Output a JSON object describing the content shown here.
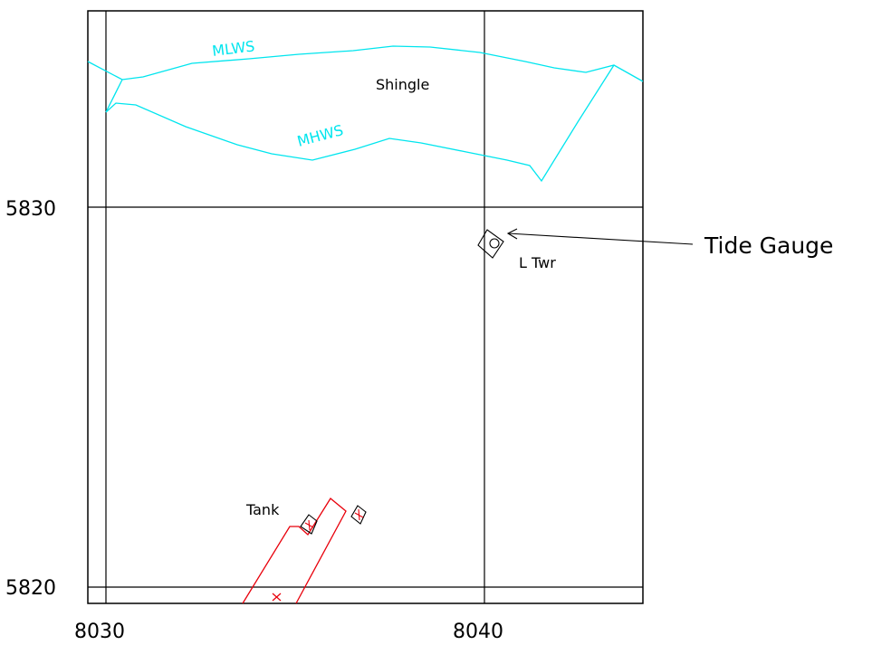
{
  "grid": {
    "eastings": [
      "8030",
      "8040"
    ],
    "northings": [
      "5830",
      "5820"
    ]
  },
  "labels": {
    "mlws": "MLWS",
    "mhws": "MHWS",
    "shingle": "Shingle",
    "l_twr": "L Twr",
    "tank": "Tank",
    "tide_gauge": "Tide Gauge"
  },
  "colors": {
    "frame": "#000000",
    "tide_lines": "#00e5ee",
    "structures": "#e8000b",
    "background": "#ffffff"
  },
  "icons": {
    "tide_gauge_symbol": "diamond-with-circle-icon",
    "tank_symbol": "diamond-with-cross-icon",
    "arrow": "arrow-left-icon"
  }
}
